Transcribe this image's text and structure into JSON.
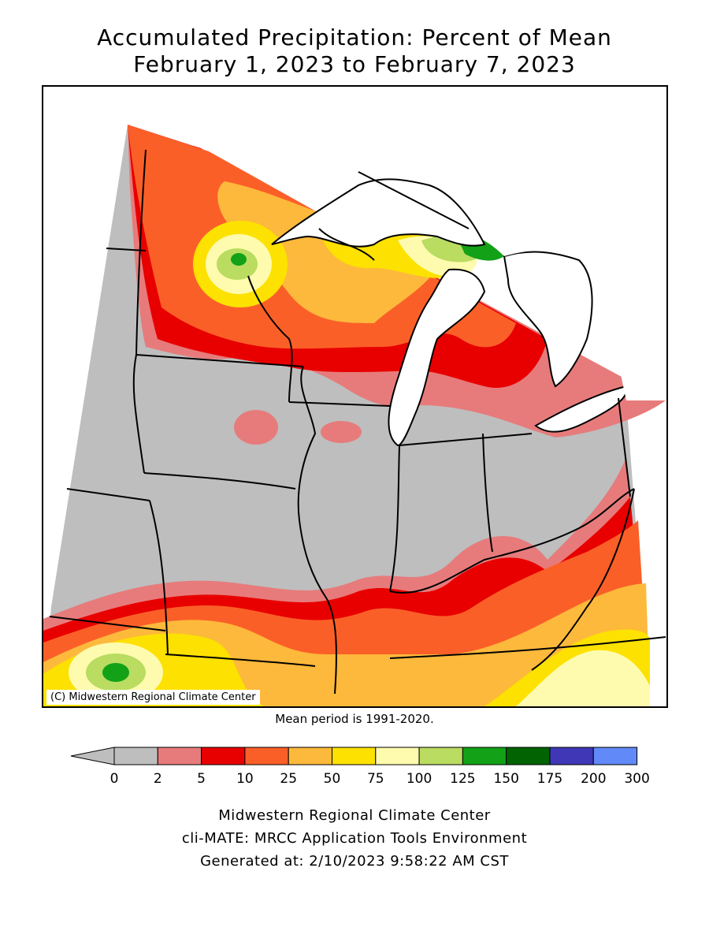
{
  "header": {
    "title_line1": "Accumulated Precipitation: Percent of Mean",
    "title_line2": "February 1, 2023 to February 7, 2023"
  },
  "map": {
    "copyright": "(C) Midwestern Regional Climate Center",
    "mean_period": "Mean period is 1991-2020.",
    "lake_color": "#ffffff",
    "border_color": "#000000"
  },
  "legend": {
    "labels": [
      "0",
      "2",
      "5",
      "10",
      "25",
      "50",
      "75",
      "100",
      "125",
      "150",
      "175",
      "200",
      "300"
    ],
    "colors": [
      "#bebebe",
      "#e77b7b",
      "#e80000",
      "#fb5f28",
      "#fdb93b",
      "#fde100",
      "#fffbae",
      "#b9dc61",
      "#12a117",
      "#016301",
      "#3f37b5",
      "#6189f7"
    ],
    "underflow_color": "#bebebe"
  },
  "footer": {
    "line1": "Midwestern Regional Climate Center",
    "line2": "cli-MATE: MRCC Application Tools Environment",
    "line3": "Generated at: 2/10/2023 9:58:22 AM CST"
  }
}
